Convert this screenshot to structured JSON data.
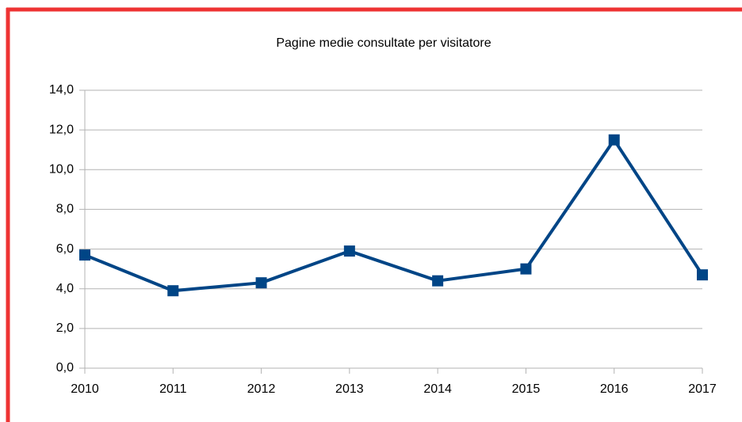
{
  "chart_data": {
    "type": "line",
    "title": "Pagine medie consultate per visitatore",
    "categories": [
      "2010",
      "2011",
      "2012",
      "2013",
      "2014",
      "2015",
      "2016",
      "2017"
    ],
    "series": [
      {
        "name": "Pagine medie consultate per visitatore",
        "color": "#004586",
        "values": [
          5.7,
          3.9,
          4.3,
          5.9,
          4.4,
          5.0,
          11.5,
          4.7
        ]
      }
    ],
    "ylim": [
      0,
      14
    ],
    "yticks": [
      {
        "value": 0,
        "label": "0,0"
      },
      {
        "value": 2,
        "label": "2,0"
      },
      {
        "value": 4,
        "label": "4,0"
      },
      {
        "value": 6,
        "label": "6,0"
      },
      {
        "value": 8,
        "label": "8,0"
      },
      {
        "value": 10,
        "label": "10,0"
      },
      {
        "value": 12,
        "label": "12,0"
      },
      {
        "value": 14,
        "label": "14,0"
      }
    ],
    "grid": true
  }
}
